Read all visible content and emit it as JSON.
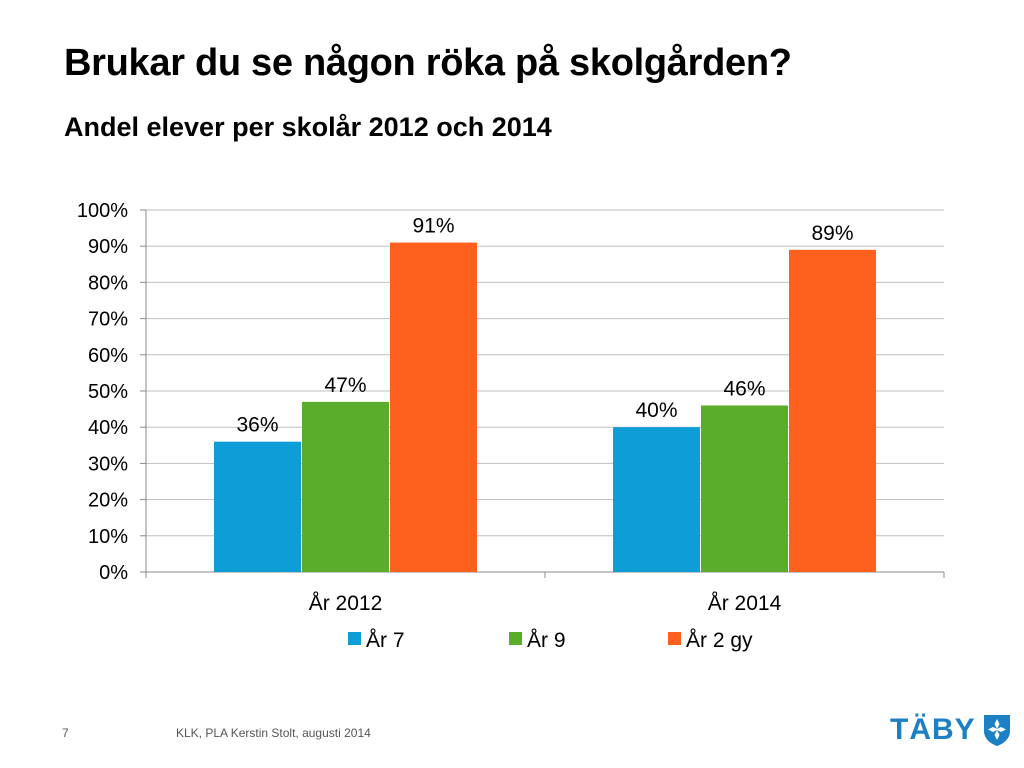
{
  "slide": {
    "title": "Brukar du se någon röka på skolgården?",
    "subtitle": "Andel elever per skolår 2012 och 2014",
    "page_number": "7",
    "credit": "KLK, PLA Kerstin Stolt, augusti 2014",
    "logo_text": "TÄBY",
    "logo_color": "#1d7fc4"
  },
  "chart_data": {
    "type": "bar",
    "title": "",
    "xlabel": "",
    "ylabel": "",
    "categories": [
      "År 2012",
      "År 2014"
    ],
    "series": [
      {
        "name": "År 7",
        "color": "#0d9ed8",
        "values": [
          36,
          40
        ],
        "labels": [
          "36%",
          "40%"
        ]
      },
      {
        "name": "År 9",
        "color": "#5aad2a",
        "values": [
          47,
          46
        ],
        "labels": [
          "47%",
          "46%"
        ]
      },
      {
        "name": "År 2 gy",
        "color": "#fd5f1c",
        "values": [
          91,
          89
        ],
        "labels": [
          "91%",
          "89%"
        ]
      }
    ],
    "ylim": [
      0,
      100
    ],
    "yticks": [
      "0%",
      "10%",
      "20%",
      "30%",
      "40%",
      "50%",
      "60%",
      "70%",
      "80%",
      "90%",
      "100%"
    ],
    "grid": true,
    "legend": "bottom"
  }
}
